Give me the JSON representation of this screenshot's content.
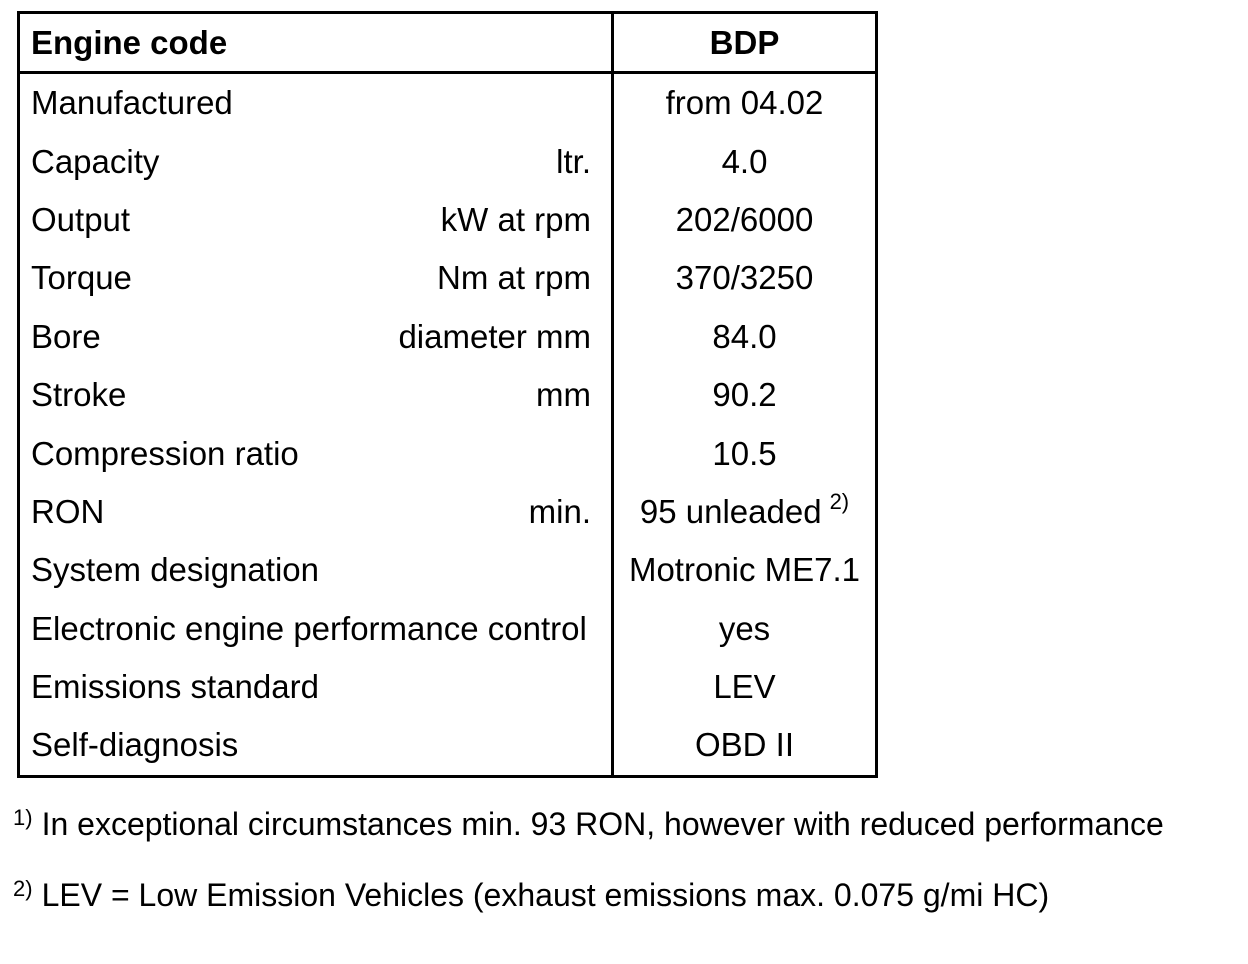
{
  "colors": {
    "background": "#ffffff",
    "text": "#000000",
    "border": "#000000"
  },
  "table": {
    "header": {
      "label": "Engine code",
      "value": "BDP"
    },
    "rows": [
      {
        "label": "Manufactured",
        "unit": "",
        "value": "from 04.02"
      },
      {
        "label": "Capacity",
        "unit": "ltr.",
        "value": "4.0"
      },
      {
        "label": "Output",
        "unit": "kW at rpm",
        "value": "202/6000"
      },
      {
        "label": "Torque",
        "unit": "Nm at rpm",
        "value": "370/3250"
      },
      {
        "label": "Bore",
        "unit": "diameter mm",
        "value": "84.0"
      },
      {
        "label": "Stroke",
        "unit": "mm",
        "value": "90.2"
      },
      {
        "label": "Compression ratio",
        "unit": "",
        "value": "10.5"
      },
      {
        "label": "RON",
        "unit": "min.",
        "value": "95 unleaded",
        "value_sup": "2)"
      },
      {
        "label": "System designation",
        "unit": "",
        "value": "Motronic ME7.1"
      },
      {
        "label": "Electronic engine performance control",
        "unit": "",
        "value": "yes"
      },
      {
        "label": "Emissions standard",
        "unit": "",
        "value": "LEV"
      },
      {
        "label": "Self-diagnosis",
        "unit": "",
        "value": "OBD II"
      }
    ]
  },
  "footnotes": [
    {
      "marker": "1)",
      "text": "In exceptional circumstances min. 93 RON, however with reduced performance"
    },
    {
      "marker": "2)",
      "text": "LEV = Low Emission Vehicles (exhaust emissions max. 0.075 g/mi HC)"
    }
  ]
}
